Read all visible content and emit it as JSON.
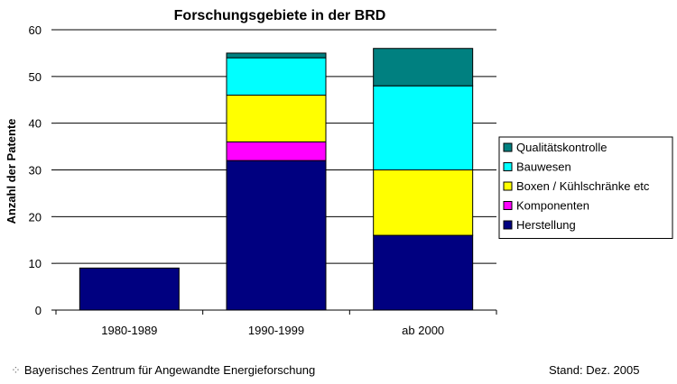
{
  "chart_data": {
    "type": "bar",
    "stacked": true,
    "title": "Forschungsgebiete in der BRD",
    "ylabel": "Anzahl der Patente",
    "xlabel": "",
    "ylim": [
      0,
      60
    ],
    "yticks": [
      0,
      10,
      20,
      30,
      40,
      50,
      60
    ],
    "grid": true,
    "legend_position": "right",
    "categories": [
      "1980-1989",
      "1990-1999",
      "ab 2000"
    ],
    "series": [
      {
        "name": "Herstellung",
        "color": "#000080",
        "values": [
          9,
          32,
          16
        ]
      },
      {
        "name": "Komponenten",
        "color": "#ff00ff",
        "values": [
          0,
          4,
          0
        ]
      },
      {
        "name": "Boxen / Kühlschränke etc",
        "color": "#ffff00",
        "values": [
          0,
          10,
          14
        ]
      },
      {
        "name": "Bauwesen",
        "color": "#00ffff",
        "values": [
          0,
          8,
          18
        ]
      },
      {
        "name": "Qualitätskontrolle",
        "color": "#008080",
        "values": [
          0,
          1,
          8
        ]
      }
    ]
  },
  "footer": {
    "source": "Bayerisches Zentrum für Angewandte Energieforschung",
    "date": "Stand: Dez. 2005"
  }
}
